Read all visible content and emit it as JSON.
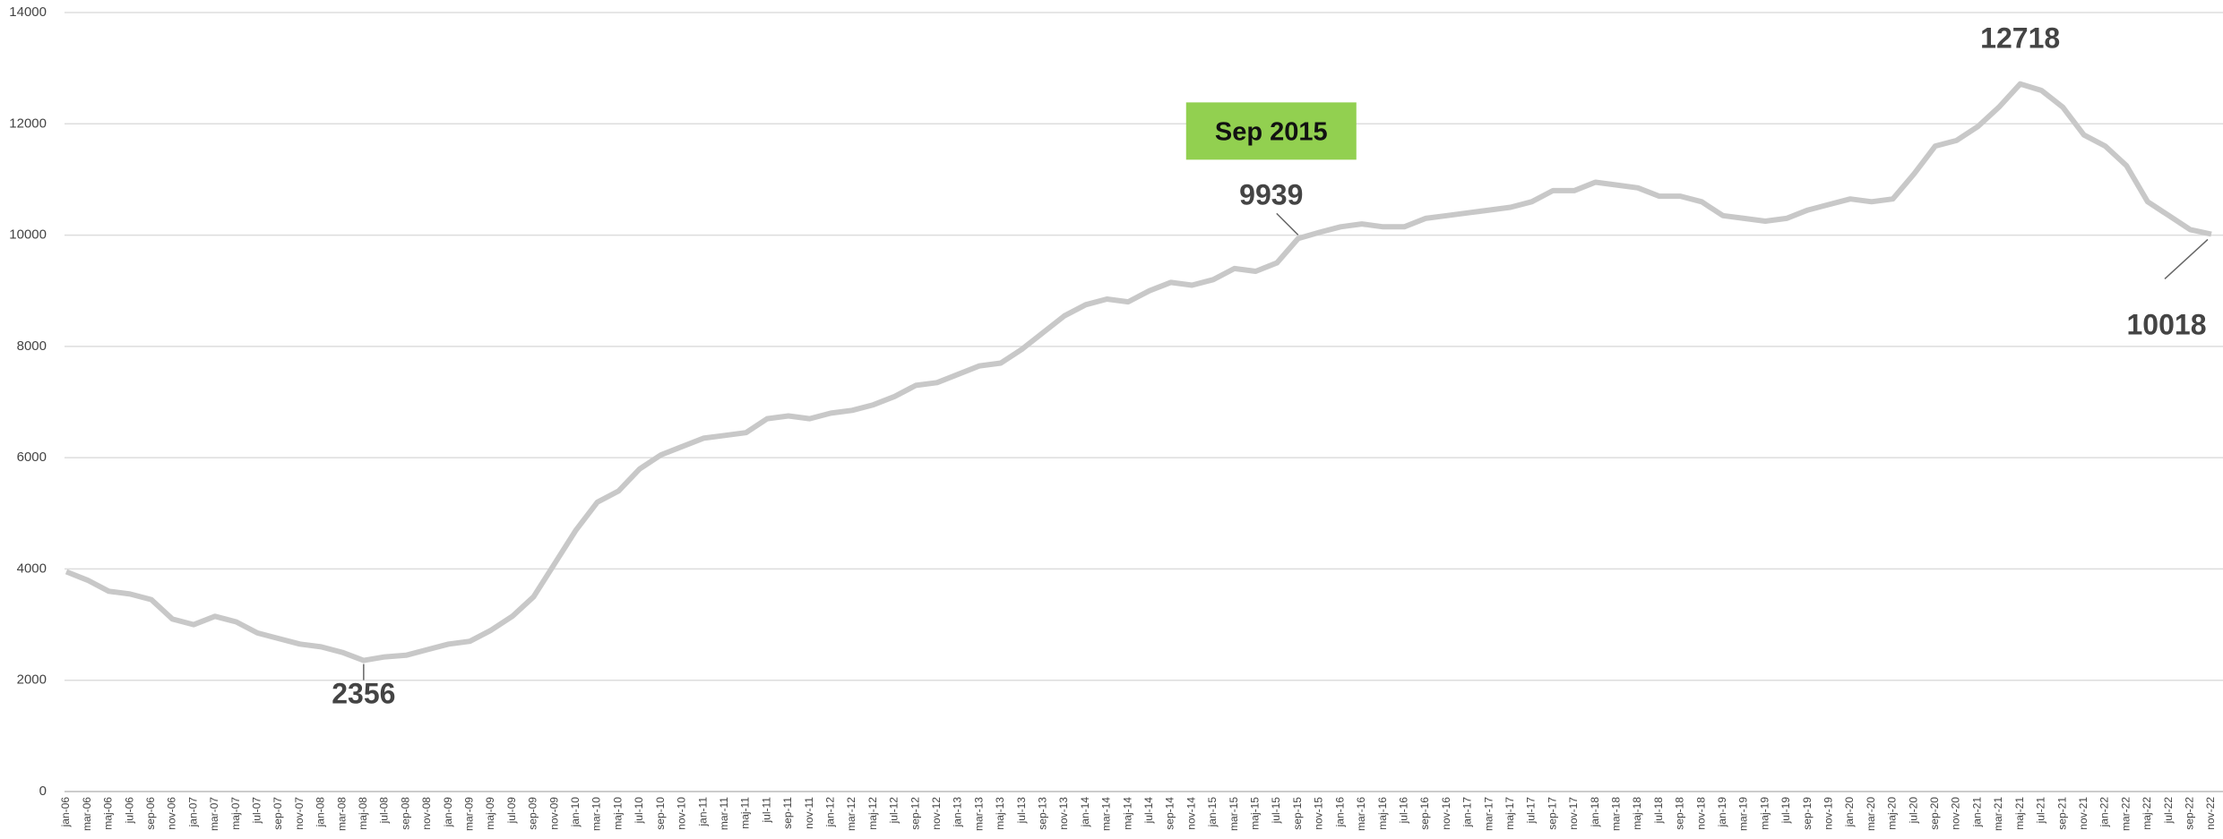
{
  "chart_data": {
    "type": "line",
    "categories": [
      "jan-06",
      "mar-06",
      "maj-06",
      "jul-06",
      "sep-06",
      "nov-06",
      "jan-07",
      "mar-07",
      "maj-07",
      "jul-07",
      "sep-07",
      "nov-07",
      "jan-08",
      "mar-08",
      "maj-08",
      "jul-08",
      "sep-08",
      "nov-08",
      "jan-09",
      "mar-09",
      "maj-09",
      "jul-09",
      "sep-09",
      "nov-09",
      "jan-10",
      "mar-10",
      "maj-10",
      "jul-10",
      "sep-10",
      "nov-10",
      "jan-11",
      "mar-11",
      "maj-11",
      "jul-11",
      "sep-11",
      "nov-11",
      "jan-12",
      "mar-12",
      "maj-12",
      "jul-12",
      "sep-12",
      "nov-12",
      "jan-13",
      "mar-13",
      "maj-13",
      "jul-13",
      "sep-13",
      "nov-13",
      "jan-14",
      "mar-14",
      "maj-14",
      "jul-14",
      "sep-14",
      "nov-14",
      "jan-15",
      "mar-15",
      "maj-15",
      "jul-15",
      "sep-15",
      "nov-15",
      "jan-16",
      "mar-16",
      "maj-16",
      "jul-16",
      "sep-16",
      "nov-16",
      "jan-17",
      "mar-17",
      "maj-17",
      "jul-17",
      "sep-17",
      "nov-17",
      "jan-18",
      "mar-18",
      "maj-18",
      "jul-18",
      "sep-18",
      "nov-18",
      "jan-19",
      "mar-19",
      "maj-19",
      "jul-19",
      "sep-19",
      "nov-19",
      "jan-20",
      "mar-20",
      "maj-20",
      "jul-20",
      "sep-20",
      "nov-20",
      "jan-21",
      "mar-21",
      "maj-21",
      "jul-21",
      "sep-21",
      "nov-21",
      "jan-22",
      "mar-22",
      "maj-22",
      "jul-22",
      "sep-22",
      "nov-22"
    ],
    "values": [
      3950,
      3800,
      3600,
      3550,
      3450,
      3100,
      3000,
      3150,
      3050,
      2850,
      2750,
      2650,
      2600,
      2500,
      2356,
      2420,
      2450,
      2550,
      2650,
      2700,
      2900,
      3150,
      3500,
      4100,
      4700,
      5200,
      5400,
      5800,
      6050,
      6200,
      6350,
      6400,
      6450,
      6700,
      6750,
      6700,
      6800,
      6850,
      6950,
      7100,
      7300,
      7350,
      7500,
      7650,
      7700,
      7950,
      8250,
      8550,
      8750,
      8850,
      8800,
      9000,
      9150,
      9100,
      9200,
      9400,
      9350,
      9500,
      9939,
      10050,
      10150,
      10200,
      10150,
      10150,
      10300,
      10350,
      10400,
      10450,
      10500,
      10600,
      10800,
      10800,
      10950,
      10900,
      10850,
      10700,
      10700,
      10600,
      10350,
      10300,
      10250,
      10300,
      10450,
      10550,
      10650,
      10600,
      10650,
      11100,
      11600,
      11700,
      11950,
      12300,
      12718,
      12600,
      12300,
      11800,
      11600,
      11250,
      10600,
      10350,
      10100,
      10018
    ],
    "color": "#c8c8c8",
    "ylim": [
      0,
      14000
    ],
    "yticks": [
      0,
      2000,
      4000,
      6000,
      8000,
      10000,
      12000,
      14000
    ],
    "grid": true,
    "annotations": [
      {
        "text": "Sep 2015",
        "color": "#92d050"
      }
    ]
  }
}
